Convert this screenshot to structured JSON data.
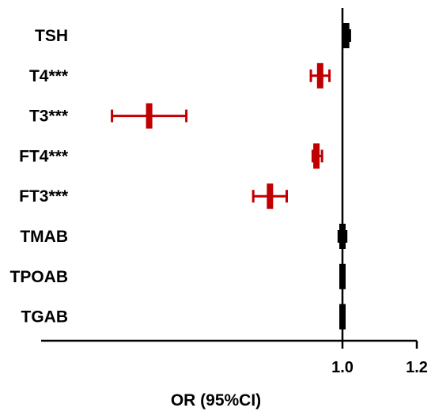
{
  "chart_data": {
    "type": "forest",
    "xlabel": "OR (95%CI)",
    "x_ticks": [
      {
        "value": 1.0,
        "label": "1.0"
      },
      {
        "value": 1.2,
        "label": "1.2"
      }
    ],
    "xlim": [
      0.18,
      1.2
    ],
    "reference_line": 1.0,
    "colors": {
      "significant": "#c00000",
      "nonsignificant": "#000000"
    },
    "rows": [
      {
        "label": "TSH",
        "or": 1.01,
        "lower": 1.005,
        "upper": 1.02,
        "significant": false
      },
      {
        "label": "T4***",
        "or": 0.94,
        "lower": 0.915,
        "upper": 0.965,
        "significant": true
      },
      {
        "label": "T3***",
        "or": 0.48,
        "lower": 0.38,
        "upper": 0.58,
        "significant": true
      },
      {
        "label": "FT4***",
        "or": 0.93,
        "lower": 0.92,
        "upper": 0.945,
        "significant": true
      },
      {
        "label": "FT3***",
        "or": 0.805,
        "lower": 0.76,
        "upper": 0.85,
        "significant": true
      },
      {
        "label": "TMAB",
        "or": 1.0,
        "lower": 0.99,
        "upper": 1.01,
        "significant": false
      },
      {
        "label": "TPOAB",
        "or": 1.0,
        "lower": 0.998,
        "upper": 1.002,
        "significant": false
      },
      {
        "label": "TGAB",
        "or": 1.0,
        "lower": 0.998,
        "upper": 1.002,
        "significant": false
      }
    ]
  }
}
